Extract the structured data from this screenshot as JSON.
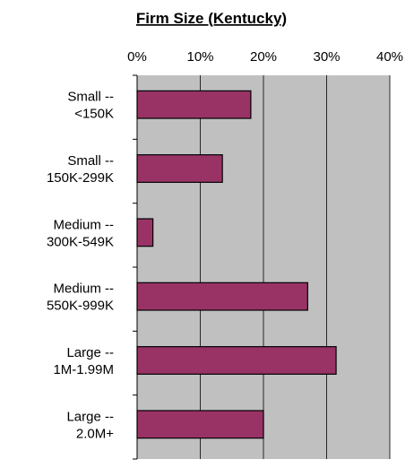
{
  "chart_data": {
    "type": "bar",
    "orientation": "horizontal",
    "title": "Firm Size (Kentucky)",
    "categories": [
      [
        "Small --",
        "<150K"
      ],
      [
        "Small --",
        "150K-299K"
      ],
      [
        "Medium --",
        "300K-549K"
      ],
      [
        "Medium --",
        "550K-999K"
      ],
      [
        "Large --",
        "1M-1.99M"
      ],
      [
        "Large --",
        "2.0M+"
      ]
    ],
    "values": [
      18,
      13.5,
      2.5,
      27,
      31.5,
      20
    ],
    "xlim": [
      0,
      40
    ],
    "x_ticks": [
      "0%",
      "10%",
      "20%",
      "30%",
      "40%"
    ],
    "x_axis_position": "top",
    "grid": true,
    "legend": "none",
    "colors": {
      "bar": "#993366",
      "bar_border": "#000000",
      "plot_background": "#c0c0c0",
      "gridline": "#000000"
    }
  }
}
